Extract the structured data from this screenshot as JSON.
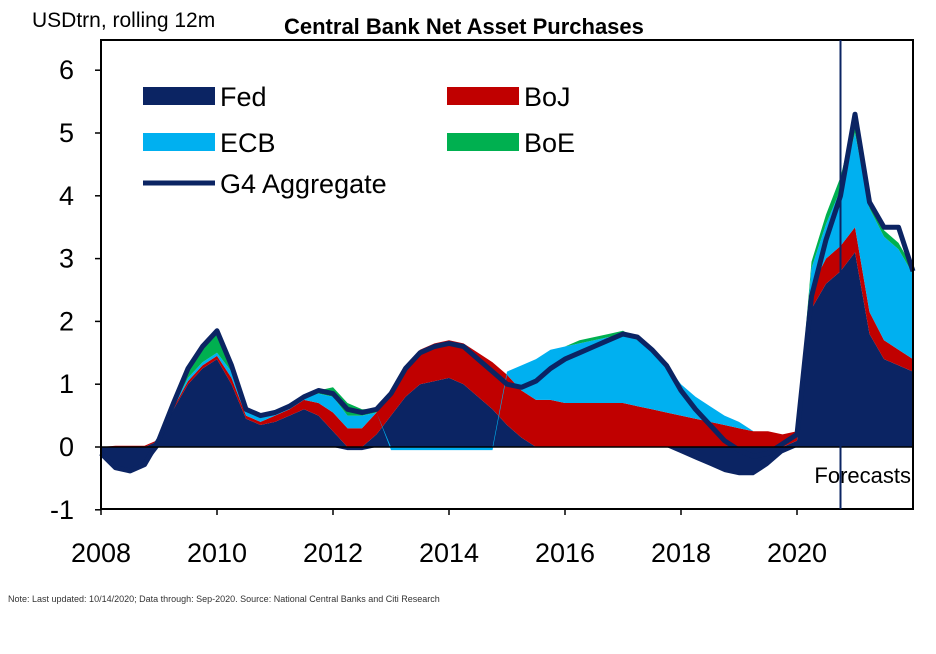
{
  "chart_data": {
    "type": "area",
    "title": "Central Bank Net Asset Purchases",
    "ylabel": "USDtrn, rolling 12m",
    "xlabel": "",
    "xlim": [
      2008,
      2022
    ],
    "ylim": [
      -1,
      6
    ],
    "x_ticks": [
      "2008",
      "2010",
      "2012",
      "2014",
      "2016",
      "2018",
      "2020"
    ],
    "y_ticks": [
      "-1",
      "0",
      "1",
      "2",
      "3",
      "4",
      "5",
      "6"
    ],
    "legend_placement": "top-left",
    "grid": false,
    "annotations": [
      {
        "text": "Forecasts",
        "x": 2020.75
      }
    ],
    "forecast_start": 2020.75,
    "x": [
      2008.0,
      2008.25,
      2008.5,
      2008.75,
      2009.0,
      2009.25,
      2009.5,
      2009.75,
      2010.0,
      2010.25,
      2010.5,
      2010.75,
      2011.0,
      2011.25,
      2011.5,
      2011.75,
      2012.0,
      2012.25,
      2012.5,
      2012.75,
      2013.0,
      2013.25,
      2013.5,
      2013.75,
      2014.0,
      2014.25,
      2014.5,
      2014.75,
      2015.0,
      2015.25,
      2015.5,
      2015.75,
      2016.0,
      2016.25,
      2016.5,
      2016.75,
      2017.0,
      2017.25,
      2017.5,
      2017.75,
      2018.0,
      2018.25,
      2018.5,
      2018.75,
      2019.0,
      2019.25,
      2019.5,
      2019.75,
      2020.0,
      2020.25,
      2020.5,
      2020.75,
      2021.0,
      2021.25,
      2021.5,
      2021.75,
      2022.0
    ],
    "series": [
      {
        "name": "Fed",
        "color": "#0b2463",
        "values": [
          -0.1,
          -0.35,
          -0.4,
          -0.3,
          0.1,
          0.6,
          1.0,
          1.25,
          1.4,
          1.0,
          0.45,
          0.35,
          0.4,
          0.5,
          0.6,
          0.5,
          0.25,
          -0.05,
          -0.05,
          0.2,
          0.5,
          0.8,
          1.0,
          1.05,
          1.1,
          1.0,
          0.8,
          0.6,
          0.35,
          0.15,
          0.0,
          0.0,
          0.0,
          0.0,
          0.0,
          0.0,
          0.0,
          0.0,
          0.0,
          0.0,
          -0.1,
          -0.2,
          -0.3,
          -0.4,
          -0.45,
          -0.45,
          -0.3,
          -0.1,
          0.1,
          2.2,
          2.6,
          2.8,
          3.1,
          1.8,
          1.4,
          1.3,
          1.2
        ]
      },
      {
        "name": "BoJ",
        "color": "#c00000",
        "values": [
          0.0,
          0.02,
          0.02,
          0.02,
          0.02,
          0.03,
          0.05,
          0.05,
          0.05,
          0.1,
          0.05,
          0.05,
          0.1,
          0.1,
          0.15,
          0.2,
          0.3,
          0.3,
          0.3,
          0.35,
          0.4,
          0.5,
          0.55,
          0.6,
          0.6,
          0.65,
          0.7,
          0.75,
          0.8,
          0.75,
          0.75,
          0.75,
          0.7,
          0.7,
          0.7,
          0.7,
          0.7,
          0.65,
          0.6,
          0.55,
          0.5,
          0.45,
          0.4,
          0.35,
          0.3,
          0.25,
          0.25,
          0.2,
          0.15,
          0.35,
          0.4,
          0.4,
          0.4,
          0.35,
          0.3,
          0.25,
          0.2
        ]
      },
      {
        "name": "ECB",
        "color": "#00b0f0",
        "values": [
          0.0,
          0.0,
          0.0,
          0.0,
          0.0,
          0.02,
          0.05,
          0.05,
          0.05,
          0.1,
          0.1,
          0.1,
          0.05,
          0.05,
          0.05,
          0.15,
          0.25,
          0.2,
          0.2,
          0.0,
          -0.05,
          -0.05,
          -0.05,
          -0.05,
          -0.05,
          -0.05,
          -0.05,
          -0.05,
          0.05,
          0.4,
          0.65,
          0.8,
          0.9,
          0.95,
          1.0,
          1.05,
          1.1,
          1.05,
          0.95,
          0.75,
          0.5,
          0.35,
          0.25,
          0.15,
          0.1,
          0.0,
          0.0,
          0.0,
          0.0,
          0.3,
          0.55,
          0.9,
          1.5,
          1.65,
          1.65,
          1.6,
          1.35
        ]
      },
      {
        "name": "BoE",
        "color": "#00b050",
        "values": [
          0.0,
          0.0,
          0.0,
          0.0,
          0.0,
          0.05,
          0.15,
          0.25,
          0.3,
          0.1,
          0.0,
          0.0,
          0.0,
          0.0,
          0.0,
          0.05,
          0.15,
          0.2,
          0.1,
          0.05,
          0.0,
          0.0,
          0.0,
          0.0,
          0.0,
          0.0,
          0.0,
          0.0,
          0.0,
          0.0,
          0.0,
          0.0,
          0.0,
          0.05,
          0.05,
          0.05,
          0.05,
          0.02,
          0.0,
          0.0,
          0.0,
          0.0,
          0.0,
          0.0,
          0.0,
          0.0,
          0.0,
          0.0,
          0.0,
          0.1,
          0.15,
          0.2,
          0.25,
          0.15,
          0.1,
          0.1,
          0.1
        ]
      },
      {
        "name": "G4 Aggregate",
        "color": "#0b2463",
        "values": [
          -0.1,
          -0.33,
          -0.38,
          -0.28,
          0.12,
          0.7,
          1.25,
          1.6,
          1.85,
          1.3,
          0.6,
          0.5,
          0.55,
          0.65,
          0.8,
          0.9,
          0.85,
          0.6,
          0.55,
          0.6,
          0.85,
          1.25,
          1.5,
          1.6,
          1.65,
          1.6,
          1.4,
          1.2,
          1.0,
          0.95,
          1.05,
          1.25,
          1.4,
          1.5,
          1.6,
          1.7,
          1.8,
          1.75,
          1.55,
          1.3,
          0.9,
          0.6,
          0.35,
          0.1,
          -0.05,
          -0.15,
          -0.1,
          0.05,
          0.2,
          2.4,
          3.3,
          4.0,
          5.3,
          3.9,
          3.5,
          3.5,
          2.8
        ]
      }
    ]
  },
  "footnote": "Note: Last updated: 10/14/2020; Data through: Sep-2020. Source: National Central Banks and Citi Research"
}
